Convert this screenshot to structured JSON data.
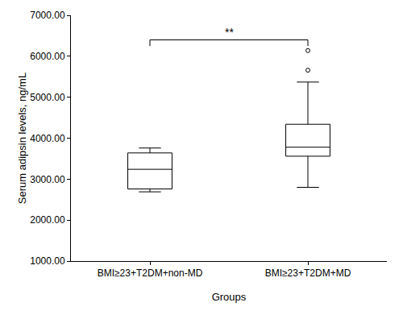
{
  "chart_data": {
    "type": "box",
    "x_label": "Groups",
    "y_label": "Serum adipsin levels, ng/mL",
    "categories": [
      "BMI≥23+T2DM+non-MD",
      "BMI≥23+T2DM+MD"
    ],
    "boxes": [
      {
        "min": 2690,
        "q1": 2760,
        "median": 3240,
        "q3": 3640,
        "max": 3760,
        "outliers": []
      },
      {
        "min": 2800,
        "q1": 3560,
        "median": 3780,
        "q3": 4340,
        "max": 5370,
        "outliers": [
          5660,
          6140
        ]
      }
    ],
    "color": "#000000",
    "marker": "open_circle",
    "ylim": [
      1000,
      7000
    ],
    "yticks": [
      {
        "value": 1000,
        "label": "1000.00"
      },
      {
        "value": 2000,
        "label": "2000.00"
      },
      {
        "value": 3000,
        "label": "3000.00"
      },
      {
        "value": 4000,
        "label": "4000.00"
      },
      {
        "value": 5000,
        "label": "5000.00"
      },
      {
        "value": 6000,
        "label": "6000.00"
      },
      {
        "value": 7000,
        "label": "7000.00"
      }
    ],
    "grid": false,
    "annotations": [
      {
        "text": "**",
        "from": "BMI≥23+T2DM+non-MD",
        "to": "BMI≥23+T2DM+MD",
        "y": 6400
      }
    ]
  }
}
